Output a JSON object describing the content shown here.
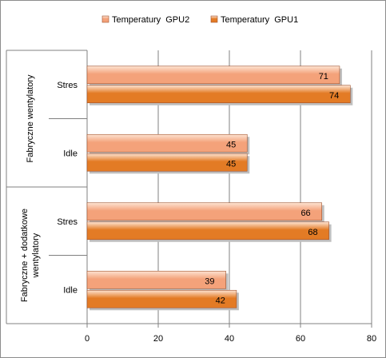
{
  "chart_data": {
    "type": "bar",
    "orientation": "horizontal",
    "groups": [
      {
        "label": "Fabryczne  wentylatory",
        "rows": [
          {
            "label": "Stres",
            "gpu2": 71,
            "gpu1": 74
          },
          {
            "label": "Idle",
            "gpu2": 45,
            "gpu1": 45
          }
        ]
      },
      {
        "label": "Fabryczne + dodatkowe\nwentylatory",
        "rows": [
          {
            "label": "Stres",
            "gpu2": 66,
            "gpu1": 68
          },
          {
            "label": "Idle",
            "gpu2": 39,
            "gpu1": 42
          }
        ]
      }
    ],
    "series": [
      {
        "key": "gpu2",
        "name": "Temperatury  GPU2",
        "color": "#f4a27a"
      },
      {
        "key": "gpu1",
        "name": "Temperatury  GPU1",
        "color": "#e37b25"
      }
    ],
    "x_ticks": [
      "0",
      "20",
      "40",
      "60",
      "80"
    ],
    "xlim": [
      0,
      80
    ],
    "grid": true,
    "legend_position": "top",
    "data_labels": true
  }
}
